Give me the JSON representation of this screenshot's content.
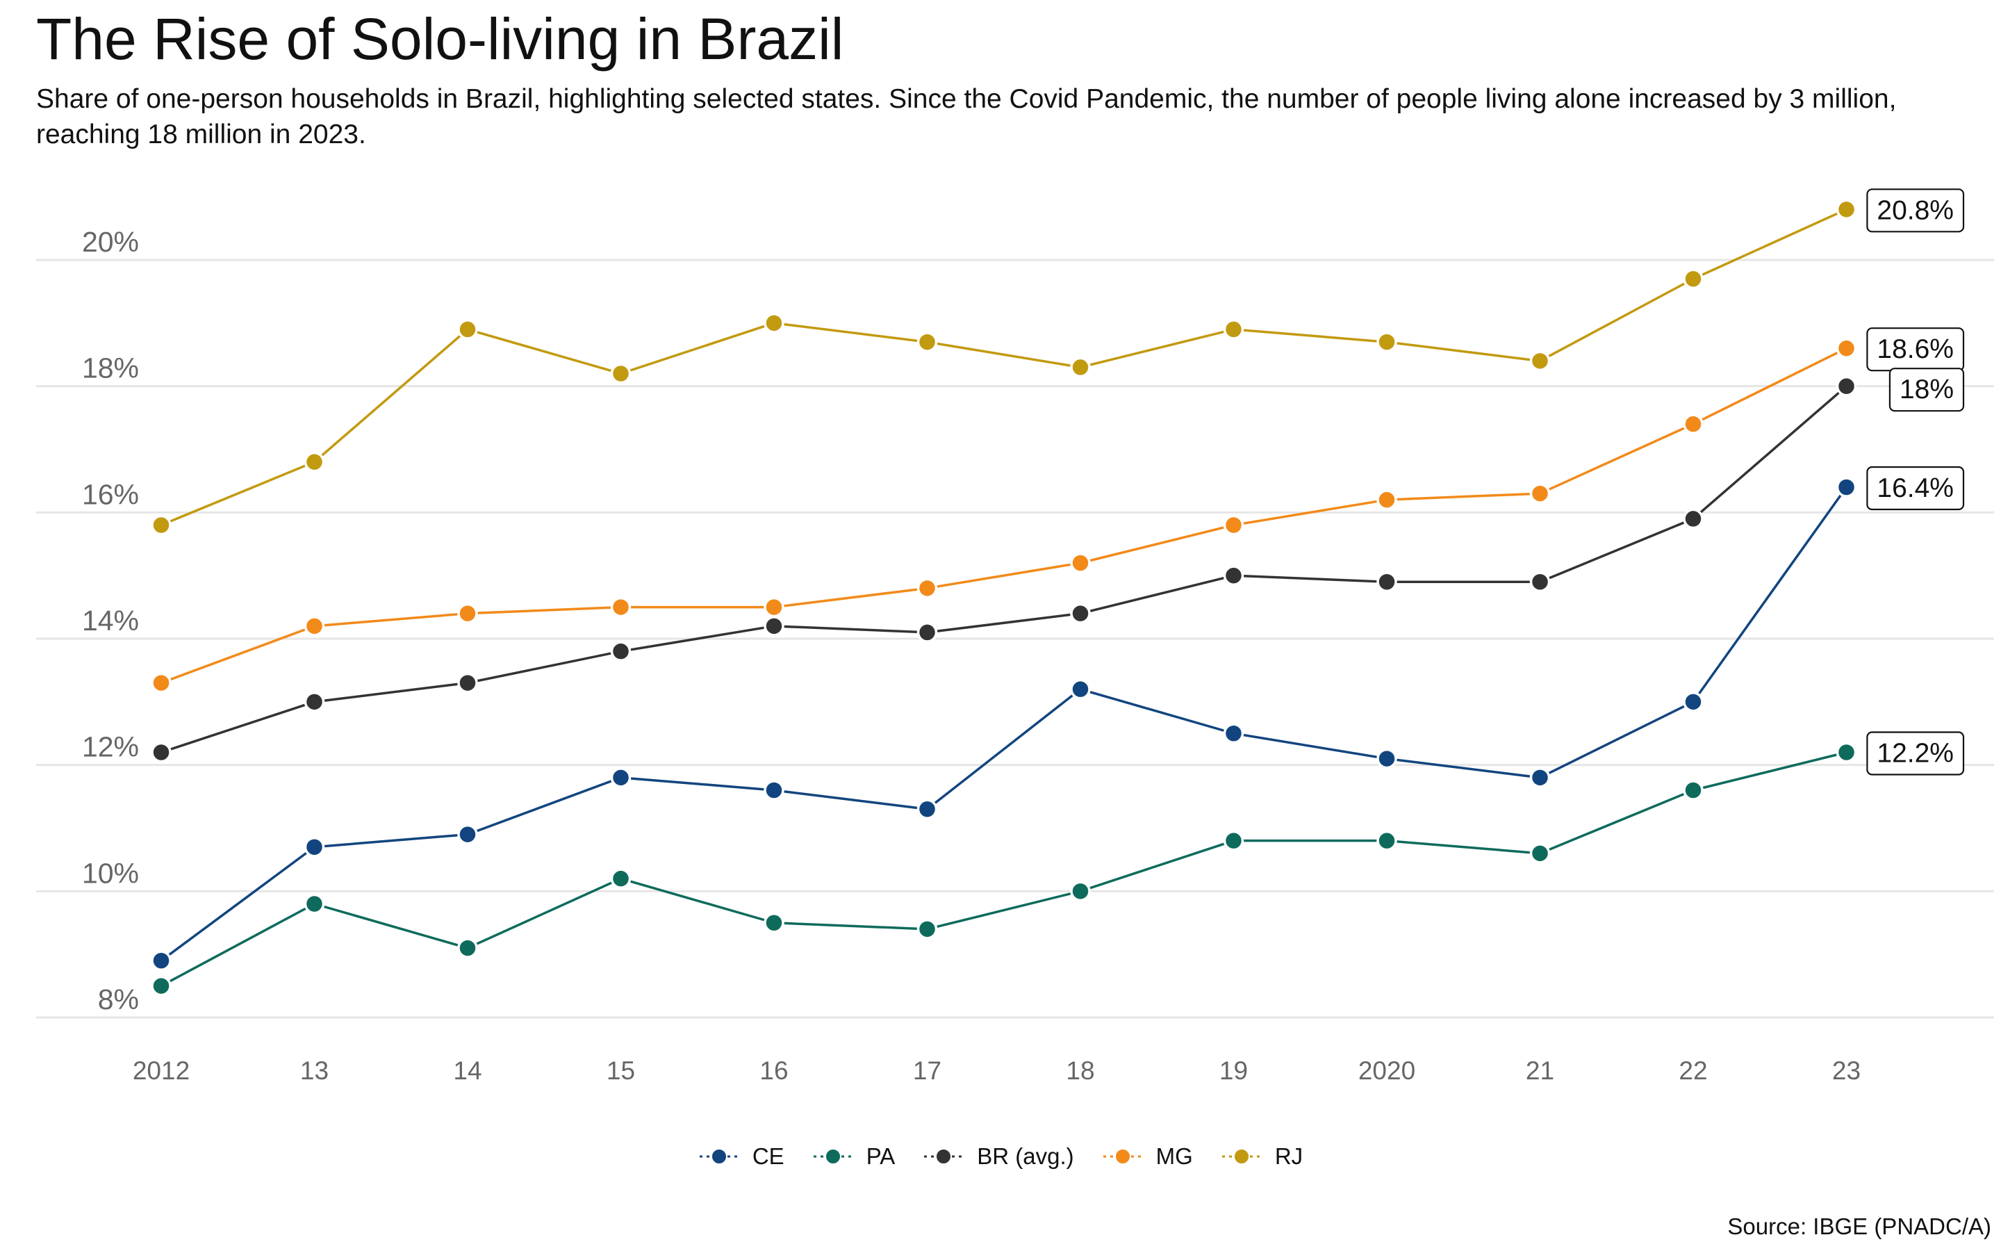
{
  "title": "The Rise of Solo-living in Brazil",
  "subtitle": "Share of one-person households in Brazil, highlighting selected states. Since the Covid Pandemic, the number of people living alone increased by 3 million, reaching 18 million in 2023.",
  "source": "Source: IBGE (PNADC/A)",
  "chart_data": {
    "type": "line",
    "title": "The Rise of Solo-living in Brazil",
    "x": [
      2012,
      2013,
      2014,
      2015,
      2016,
      2017,
      2018,
      2019,
      2020,
      2021,
      2022,
      2023
    ],
    "x_tick_labels": [
      "2012",
      "13",
      "14",
      "15",
      "16",
      "17",
      "18",
      "19",
      "2020",
      "21",
      "22",
      "23"
    ],
    "y_ticks": [
      8,
      10,
      12,
      14,
      16,
      18,
      20
    ],
    "y_tick_labels": [
      "8%",
      "10%",
      "12%",
      "14%",
      "16%",
      "18%",
      "20%"
    ],
    "ylim": [
      7.8,
      21.4
    ],
    "xlim": [
      2011.55,
      2024.0
    ],
    "grid": "horizontal",
    "legend_position": "bottom",
    "series": [
      {
        "name": "CE",
        "color": "#12457f",
        "values": [
          8.9,
          10.7,
          10.9,
          11.8,
          11.6,
          11.3,
          13.2,
          12.5,
          12.1,
          11.8,
          13.0,
          16.4
        ],
        "end_label": "16.4%"
      },
      {
        "name": "PA",
        "color": "#0e6b5c",
        "values": [
          8.5,
          9.8,
          9.1,
          10.2,
          9.5,
          9.4,
          10.0,
          10.8,
          10.8,
          10.6,
          11.6,
          12.2
        ],
        "end_label": "12.2%"
      },
      {
        "name": "BR (avg.)",
        "color": "#333333",
        "values": [
          12.2,
          13.0,
          13.3,
          13.8,
          14.2,
          14.1,
          14.4,
          15.0,
          14.9,
          14.9,
          15.9,
          18.0
        ],
        "end_label": "18%"
      },
      {
        "name": "MG",
        "color": "#f28a1a",
        "values": [
          13.3,
          14.2,
          14.4,
          14.5,
          14.5,
          14.8,
          15.2,
          15.8,
          16.2,
          16.3,
          17.4,
          18.6
        ],
        "end_label": "18.6%"
      },
      {
        "name": "RJ",
        "color": "#c29a10",
        "values": [
          15.8,
          16.8,
          18.9,
          18.2,
          19.0,
          18.7,
          18.3,
          18.9,
          18.7,
          18.4,
          19.7,
          20.8
        ],
        "end_label": "20.8%"
      }
    ]
  }
}
